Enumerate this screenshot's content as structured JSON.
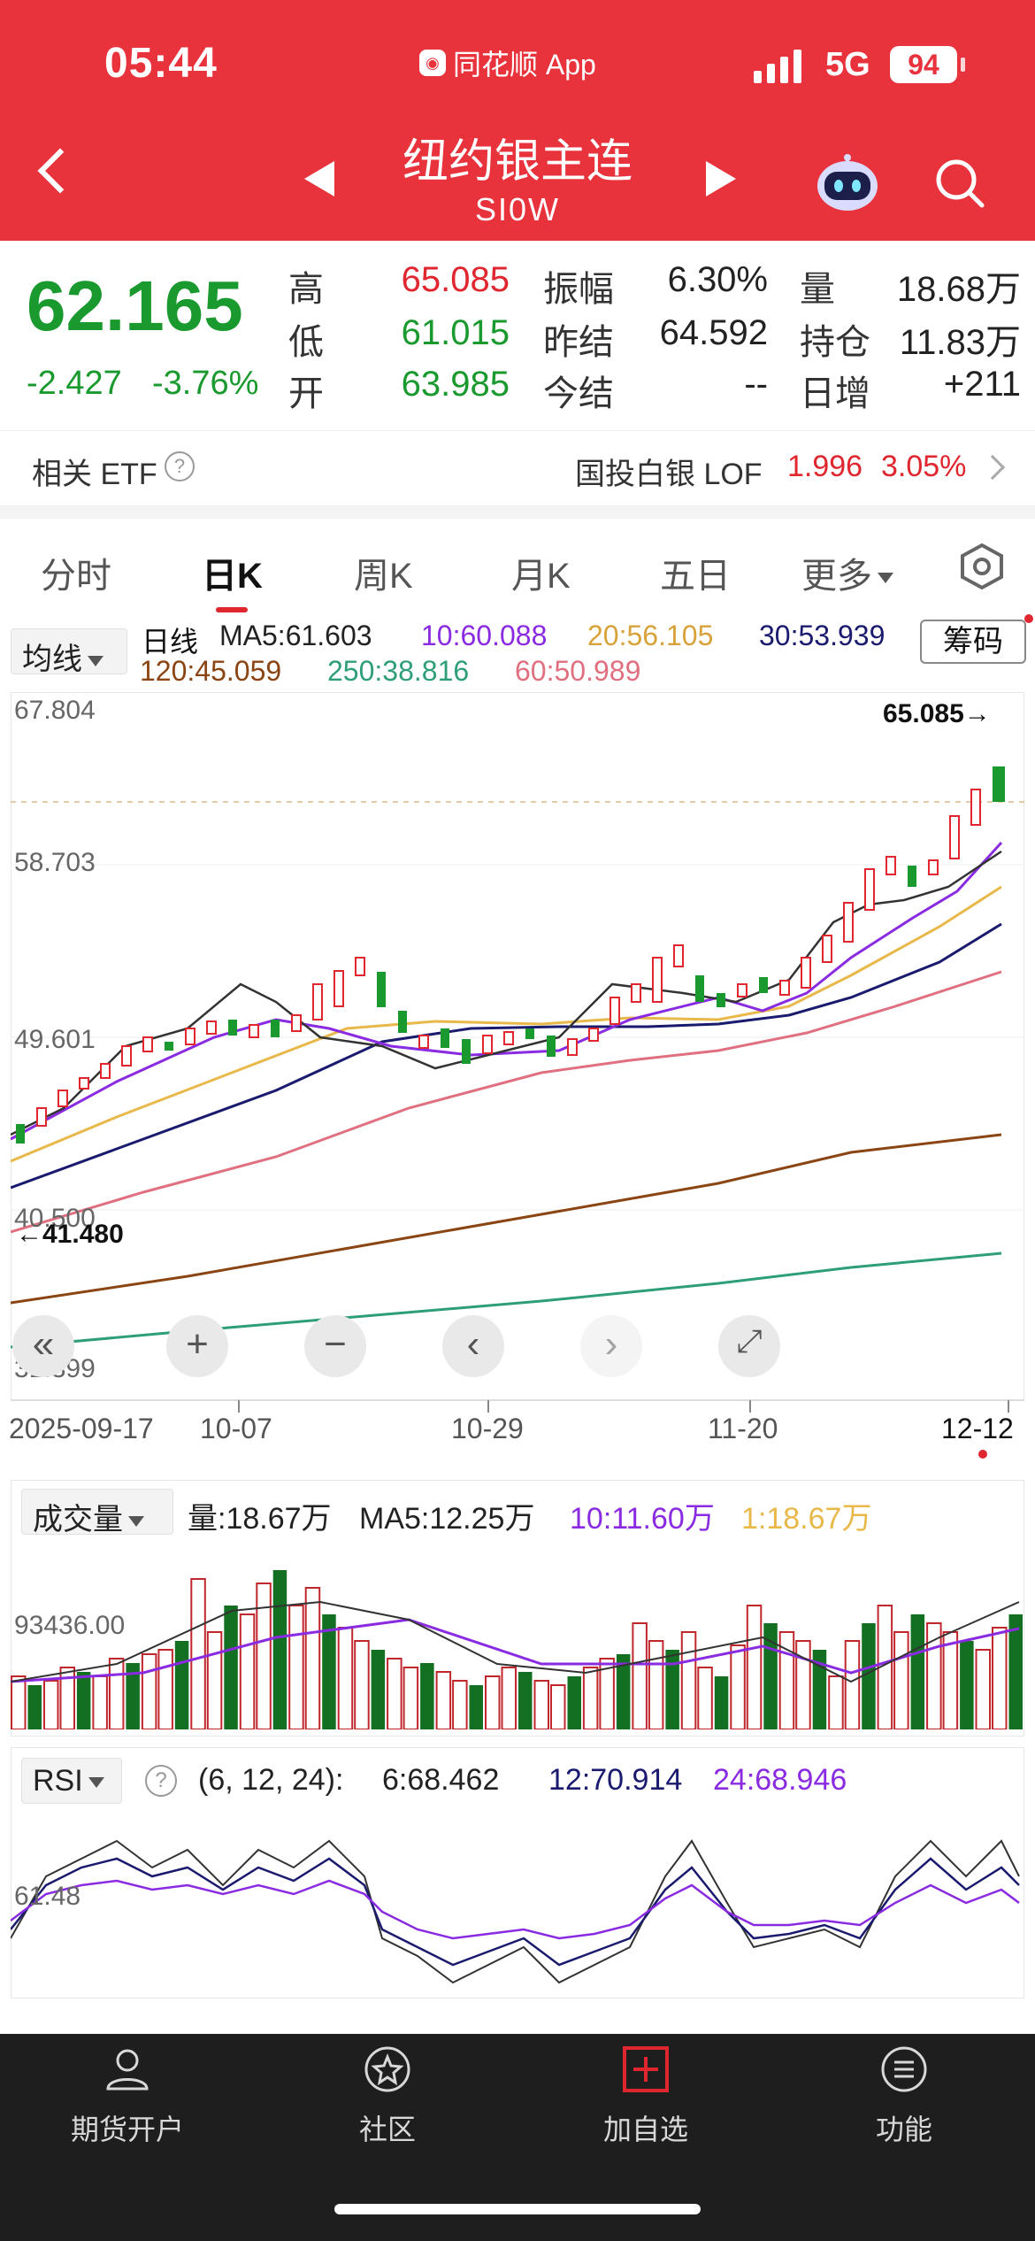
{
  "status": {
    "time": "05:44",
    "app": "同花顺 App",
    "network": "5G",
    "battery": "94"
  },
  "header": {
    "title": "纽约银主连",
    "code": "SI0W"
  },
  "quote": {
    "price": "62.165",
    "change": "-2.427",
    "change_pct": "-3.76%",
    "high_label": "高",
    "high": "65.085",
    "low_label": "低",
    "low": "61.015",
    "open_label": "开",
    "open": "63.985",
    "amp_label": "振幅",
    "amp": "6.30%",
    "prev_label": "昨结",
    "prev": "64.592",
    "today_label": "今结",
    "today": "--",
    "vol_label": "量",
    "vol": "18.68万",
    "oi_label": "持仓",
    "oi": "11.83万",
    "daily_label": "日增",
    "daily": "+211"
  },
  "etf": {
    "label": "相关 ETF",
    "name": "国投白银 LOF",
    "value": "1.996",
    "pct": "3.05%"
  },
  "tabs": [
    {
      "label": "分时"
    },
    {
      "label": "日K"
    },
    {
      "label": "周K"
    },
    {
      "label": "月K"
    },
    {
      "label": "五日"
    },
    {
      "label": "更多"
    }
  ],
  "ma": {
    "selector": "均线",
    "line_type": "日线",
    "ma5": "MA5:61.603",
    "ma10": "10:60.088",
    "ma20": "20:56.105",
    "ma30": "30:53.939",
    "ma120": "120:45.059",
    "ma250": "250:38.816",
    "ma60": "60:50.989",
    "chip_button": "筹码"
  },
  "price_axis": {
    "top": "67.804",
    "mid1": "58.703",
    "mid2": "49.601",
    "low": "40.500",
    "bottom": "31.399"
  },
  "annotations": {
    "high_mark": "65.085→",
    "low_mark": "←41.480"
  },
  "dates": {
    "d1": "2025-09-17",
    "d2": "10-07",
    "d3": "10-29",
    "d4": "11-20",
    "d5": "12-12"
  },
  "volume": {
    "selector": "成交量",
    "vol": "量:18.67万",
    "ma5": "MA5:12.25万",
    "ma10": "10:11.60万",
    "ma1": "1:18.67万",
    "axis": "93436.00"
  },
  "rsi": {
    "selector": "RSI",
    "params": "(6, 12, 24):",
    "r6": "6:68.462",
    "r12": "12:70.914",
    "r24": "24:68.946",
    "axis": "61.48"
  },
  "colors": {
    "up": "#e0262f",
    "down": "#1a9a2e",
    "header": "#e8323c",
    "ma5": "#222222",
    "ma10": "#8a2be2",
    "ma20": "#e8b84a",
    "ma30": "#1a1a6e",
    "ma60": "#e07080",
    "ma120": "#8b4513",
    "ma250": "#2e9e7a"
  },
  "nav": [
    {
      "label": "期货开户",
      "icon": "person-icon"
    },
    {
      "label": "社区",
      "icon": "star-circle-icon"
    },
    {
      "label": "加自选",
      "icon": "add-box-icon"
    },
    {
      "label": "功能",
      "icon": "menu-circle-icon"
    }
  ]
}
